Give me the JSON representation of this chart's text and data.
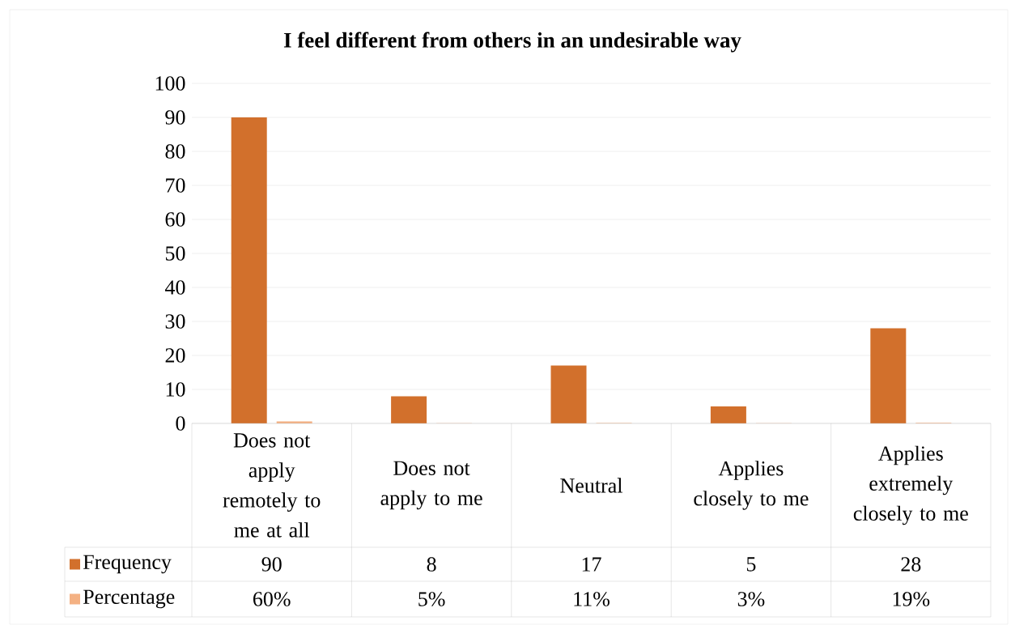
{
  "chart_data": {
    "type": "bar",
    "title": "I feel different from others in an undesirable way",
    "categories": [
      "Does not apply remotely to me at all",
      "Does not apply to me",
      "Neutral",
      "Applies closely to me",
      "Applies extremely closely to me"
    ],
    "series": [
      {
        "name": "Frequency",
        "color": "#d2702c",
        "values": [
          90,
          8,
          17,
          5,
          28
        ],
        "value_labels": [
          "90",
          "8",
          "17",
          "5",
          "28"
        ]
      },
      {
        "name": "Percentage",
        "color": "#f4b183",
        "values": [
          0.6,
          0.05,
          0.11,
          0.03,
          0.19
        ],
        "value_labels": [
          "60%",
          "5%",
          "11%",
          "3%",
          "19%"
        ]
      }
    ],
    "ylim": [
      0,
      100
    ],
    "yticks": [
      0,
      10,
      20,
      30,
      40,
      50,
      60,
      70,
      80,
      90,
      100
    ],
    "grid": "y",
    "legend": "bottom"
  }
}
